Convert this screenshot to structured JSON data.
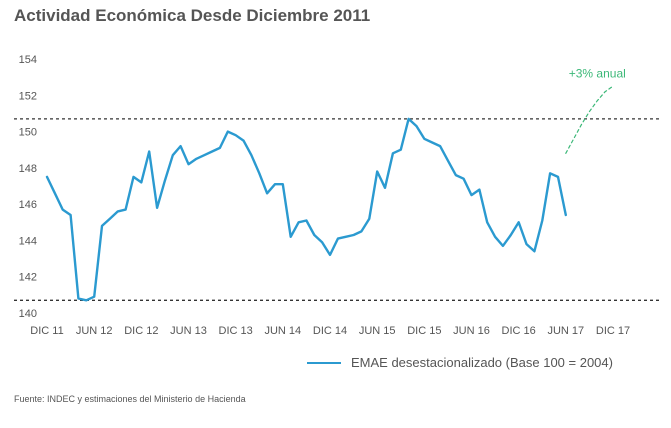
{
  "title": "Actividad Económica Desde Diciembre 2011",
  "source": "Fuente: INDEC y estimaciones del Ministerio de Hacienda",
  "chart_data": {
    "type": "line",
    "xlabel": "",
    "ylabel": "",
    "ylim": [
      140,
      154
    ],
    "yticks": [
      140,
      142,
      144,
      146,
      148,
      150,
      152,
      154
    ],
    "x_range": [
      "2011-12",
      "2017-12"
    ],
    "xtick_labels": [
      "DIC 11",
      "JUN 12",
      "DIC 12",
      "JUN 13",
      "DIC 13",
      "JUN 14",
      "DIC 14",
      "JUN 15",
      "DIC 15",
      "JUN 16",
      "DIC 16",
      "JUN 17",
      "DIC 17"
    ],
    "grid": false,
    "legend": "bottom-right",
    "reference_lines": [
      150.7,
      140.7
    ],
    "series": [
      {
        "name": "EMAE desestacionalizado (Base 100 = 2004)",
        "color": "#2b9ad0",
        "style": "solid",
        "x": [
          "2011-12",
          "2012-01",
          "2012-02",
          "2012-03",
          "2012-04",
          "2012-05",
          "2012-06",
          "2012-07",
          "2012-08",
          "2012-09",
          "2012-10",
          "2012-11",
          "2012-12",
          "2013-01",
          "2013-02",
          "2013-03",
          "2013-04",
          "2013-05",
          "2013-06",
          "2013-07",
          "2013-08",
          "2013-09",
          "2013-10",
          "2013-11",
          "2013-12",
          "2014-01",
          "2014-02",
          "2014-03",
          "2014-04",
          "2014-05",
          "2014-06",
          "2014-07",
          "2014-08",
          "2014-09",
          "2014-10",
          "2014-11",
          "2014-12",
          "2015-01",
          "2015-02",
          "2015-03",
          "2015-04",
          "2015-05",
          "2015-06",
          "2015-07",
          "2015-08",
          "2015-09",
          "2015-10",
          "2015-11",
          "2015-12",
          "2016-01",
          "2016-02",
          "2016-03",
          "2016-04",
          "2016-05",
          "2016-06",
          "2016-07",
          "2016-08",
          "2016-09",
          "2016-10",
          "2016-11",
          "2016-12",
          "2017-01",
          "2017-02",
          "2017-03",
          "2017-04",
          "2017-05",
          "2017-06"
        ],
        "values": [
          147.5,
          146.6,
          145.7,
          145.4,
          140.8,
          140.7,
          140.9,
          144.8,
          145.2,
          145.6,
          145.7,
          147.5,
          147.2,
          148.9,
          145.8,
          147.3,
          148.7,
          149.2,
          148.2,
          148.5,
          148.7,
          148.9,
          149.1,
          150.0,
          149.8,
          149.5,
          148.7,
          147.7,
          146.6,
          147.1,
          147.1,
          144.2,
          145.0,
          145.1,
          144.3,
          143.9,
          143.2,
          144.1,
          144.2,
          144.3,
          144.5,
          145.2,
          147.8,
          146.9,
          148.8,
          149.0,
          150.7,
          150.3,
          149.6,
          149.4,
          149.2,
          148.4,
          147.6,
          147.4,
          146.5,
          146.8,
          145.0,
          144.2,
          143.7,
          144.3,
          145.0,
          143.8,
          143.4,
          145.1,
          147.7,
          147.5,
          145.4
        ]
      },
      {
        "name": "",
        "color": "#3cb878",
        "style": "dashed",
        "x": [
          "2017-06",
          "2017-07",
          "2017-08",
          "2017-09",
          "2017-10",
          "2017-11",
          "2017-12"
        ],
        "values": [
          148.8,
          149.6,
          150.4,
          151.1,
          151.7,
          152.2,
          152.5
        ]
      }
    ],
    "annotations": [
      {
        "text": "+3% anual",
        "x": "2017-10",
        "y": 153.2
      }
    ]
  }
}
